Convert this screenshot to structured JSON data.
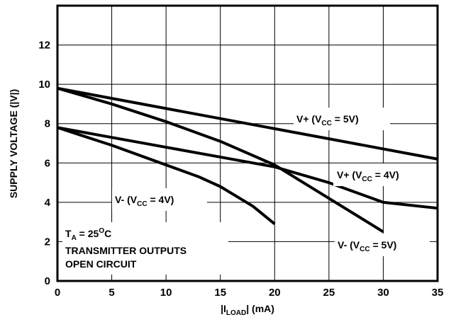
{
  "chart_data": {
    "type": "line",
    "xlabel_main": "|I",
    "xlabel_sub": "LOAD",
    "xlabel_end": "| (mA)",
    "ylabel": "SUPPLY VOLTAGE (|V|)",
    "xlim": [
      0,
      35
    ],
    "ylim": [
      0,
      14
    ],
    "grid": true,
    "x_ticks": [
      0,
      5,
      10,
      15,
      20,
      25,
      30,
      35
    ],
    "y_ticks": [
      0,
      2,
      4,
      6,
      8,
      10,
      12
    ],
    "series": [
      {
        "name": "V+ (VCC = 5V)",
        "x": [
          0,
          35
        ],
        "y": [
          9.8,
          6.2
        ]
      },
      {
        "name": "V- (VCC = 5V)",
        "x": [
          0,
          5,
          10,
          15,
          20,
          25,
          30
        ],
        "y": [
          9.8,
          9.0,
          8.1,
          7.1,
          5.9,
          4.2,
          2.5
        ]
      },
      {
        "name": "V+ (VCC = 4V)",
        "x": [
          0,
          5,
          10,
          15,
          20,
          25,
          30,
          35
        ],
        "y": [
          7.8,
          7.3,
          6.8,
          6.3,
          5.8,
          5.0,
          4.0,
          3.7
        ]
      },
      {
        "name": "V- (VCC = 4V)",
        "x": [
          0,
          5,
          10,
          13,
          15,
          18,
          20
        ],
        "y": [
          7.8,
          6.9,
          5.9,
          5.3,
          4.8,
          3.8,
          2.9
        ]
      }
    ],
    "annotations": {
      "vplus5": {
        "a": "V+ (V",
        "b": "CC",
        "c": " = 5V)"
      },
      "vminus5": {
        "a": "V- (V",
        "b": "CC",
        "c": " = 5V)"
      },
      "vplus4": {
        "a": "V+ (V",
        "b": "CC",
        "c": " = 4V)"
      },
      "vminus4": {
        "a": "V- (V",
        "b": "CC",
        "c": " = 4V)"
      },
      "ta": {
        "t": "T",
        "a": "A",
        "eq": " = 25",
        "o": "O",
        "c": "C"
      },
      "note1": "TRANSMITTER OUTPUTS",
      "note2": "OPEN CIRCUIT"
    }
  }
}
